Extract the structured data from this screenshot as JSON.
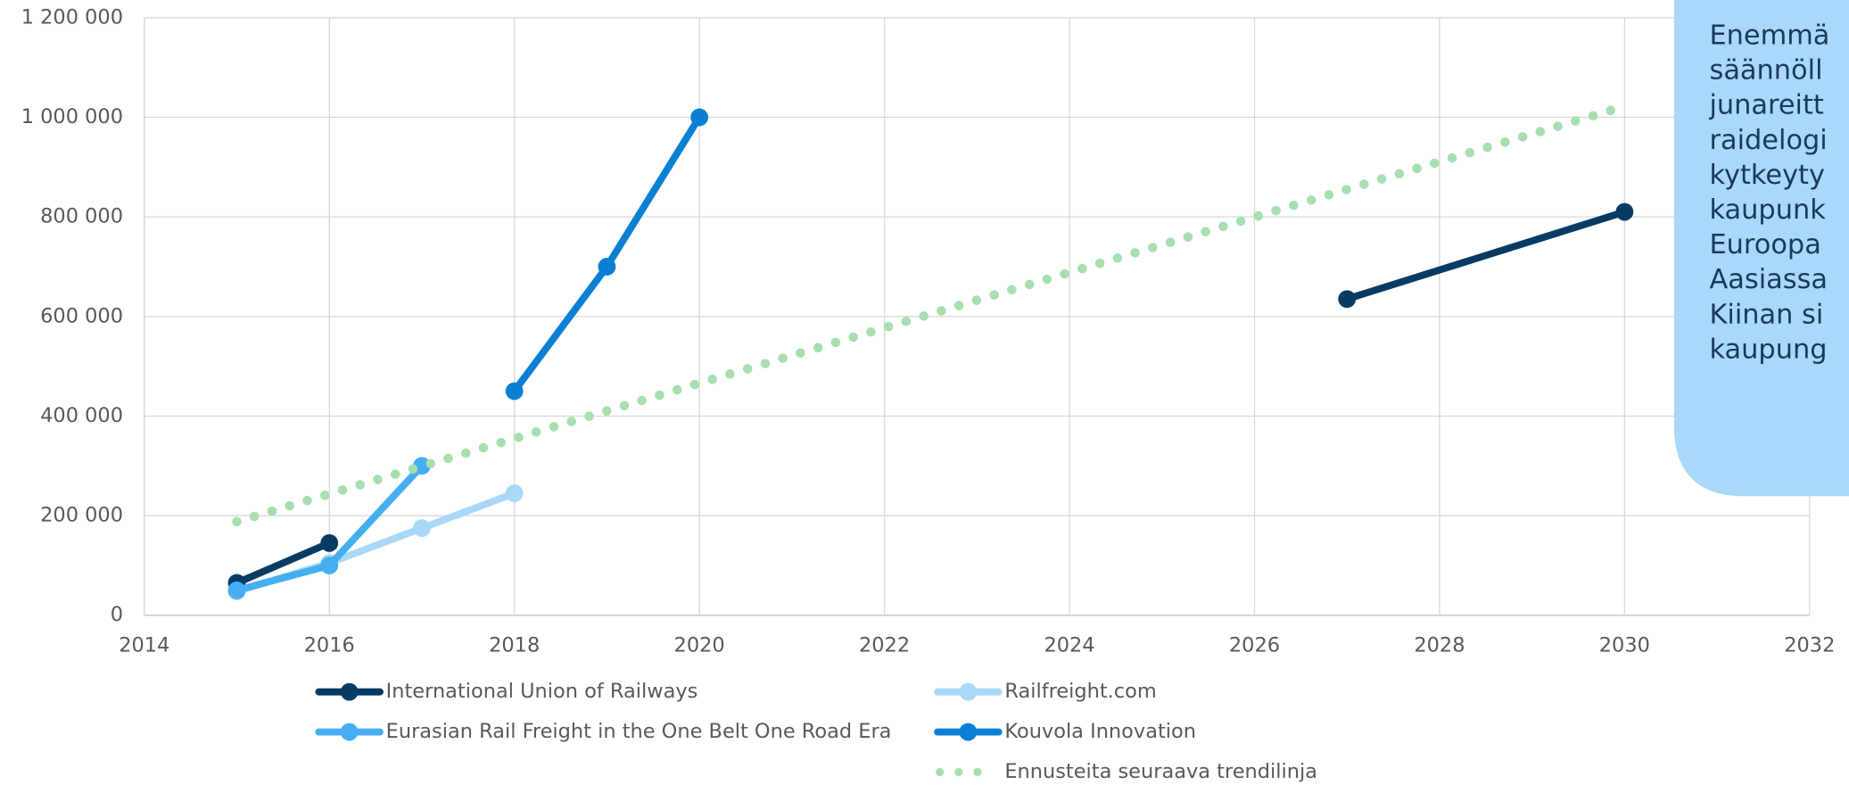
{
  "chart_data": {
    "type": "line",
    "xlim": [
      2014,
      2032
    ],
    "xticks": [
      2014,
      2016,
      2018,
      2020,
      2022,
      2024,
      2026,
      2028,
      2030,
      2032
    ],
    "ylim": [
      0,
      1200000
    ],
    "yticks": [
      0,
      {
        "value": 200000,
        "label": "200 000"
      },
      {
        "value": 400000,
        "label": "400 000"
      },
      {
        "value": 600000,
        "label": "600 000"
      },
      {
        "value": 800000,
        "label": "800 000"
      },
      {
        "value": 1000000,
        "label": "1 000 000"
      },
      {
        "value": 1200000,
        "label": "1 200 000"
      }
    ],
    "grid": true,
    "legend": "bottom",
    "series": [
      {
        "name": "International Union of Railways",
        "color": "#073b63",
        "style": "solid",
        "x": [
          2015,
          2016,
          null,
          2027,
          2030
        ],
        "values": [
          65000,
          145000,
          null,
          635000,
          810000
        ]
      },
      {
        "name": "Railfreight.com",
        "color": "#aad8f7",
        "style": "solid",
        "x": [
          2015,
          2016,
          2017,
          2018
        ],
        "values": [
          48000,
          105000,
          175000,
          245000
        ]
      },
      {
        "name": "Eurasian Rail Freight in the One Belt One Road Era",
        "color": "#45aef0",
        "style": "solid",
        "x": [
          2015,
          2016,
          2017
        ],
        "values": [
          50000,
          100000,
          300000
        ]
      },
      {
        "name": "Kouvola Innovation",
        "color": "#0a7fd4",
        "style": "solid",
        "x": [
          2018,
          2019,
          2020
        ],
        "values": [
          450000,
          700000,
          1000000
        ]
      },
      {
        "name": "Ennusteita seuraava trendilinja",
        "color": "#a8dfb0",
        "style": "dotted",
        "x": [
          2015,
          2030
        ],
        "values": [
          188000,
          1022000
        ]
      }
    ],
    "annotation": [
      "Enemmä",
      "säännöll",
      "junareitt",
      "raidelogi",
      "kytkeyty",
      "kaupunk",
      "Euroopa",
      "Aasiassa",
      "Kiinan si",
      "kaupung"
    ],
    "annotation_color": "#aad8fa"
  }
}
